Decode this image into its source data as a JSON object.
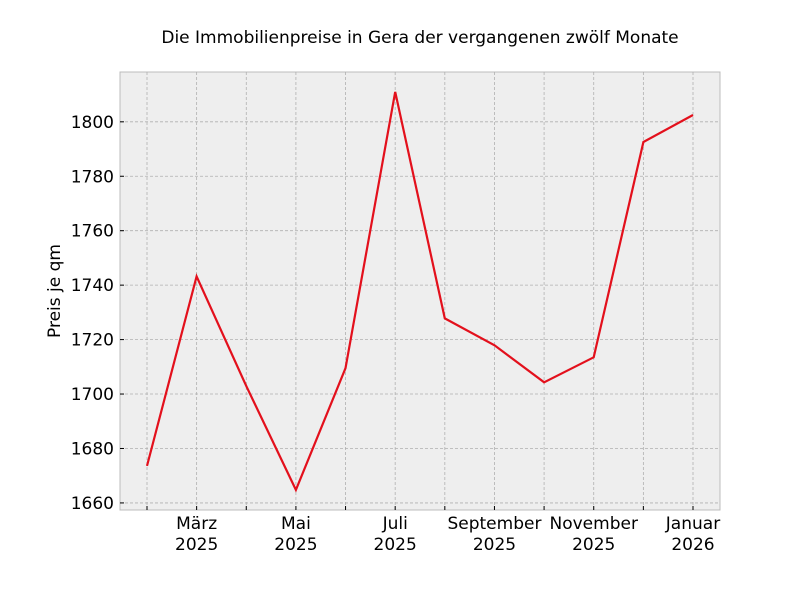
{
  "chart_data": {
    "type": "line",
    "title": "Die Immobilienpreise in Gera der vergangenen zwölf Monate",
    "xlabel": "",
    "ylabel": "Preis je qm",
    "x": [
      "2025-02",
      "2025-03",
      "2025-04",
      "2025-05",
      "2025-06",
      "2025-07",
      "2025-08",
      "2025-09",
      "2025-10",
      "2025-11",
      "2025-12",
      "2026-01"
    ],
    "series": [
      {
        "name": "Preis je qm",
        "color": "#e3101c",
        "values": [
          1673.6,
          1743.2,
          1702.9,
          1664.8,
          1709.5,
          1811.0,
          1727.8,
          1717.9,
          1704.3,
          1713.5,
          1792.6,
          1802.5
        ]
      }
    ],
    "x_tick_labels": [
      {
        "index": 1,
        "line1": "März",
        "line2": "2025"
      },
      {
        "index": 3,
        "line1": "Mai",
        "line2": "2025"
      },
      {
        "index": 5,
        "line1": "Juli",
        "line2": "2025"
      },
      {
        "index": 7,
        "line1": "September",
        "line2": "2025"
      },
      {
        "index": 9,
        "line1": "November",
        "line2": "2025"
      },
      {
        "index": 11,
        "line1": "Januar",
        "line2": "2026"
      }
    ],
    "y_ticks": [
      1660,
      1680,
      1700,
      1720,
      1740,
      1760,
      1780,
      1800
    ],
    "ylim": [
      1657.4,
      1818.3
    ],
    "grid": true,
    "background": "#eeeeee",
    "grid_color": "#b0b0b0"
  }
}
